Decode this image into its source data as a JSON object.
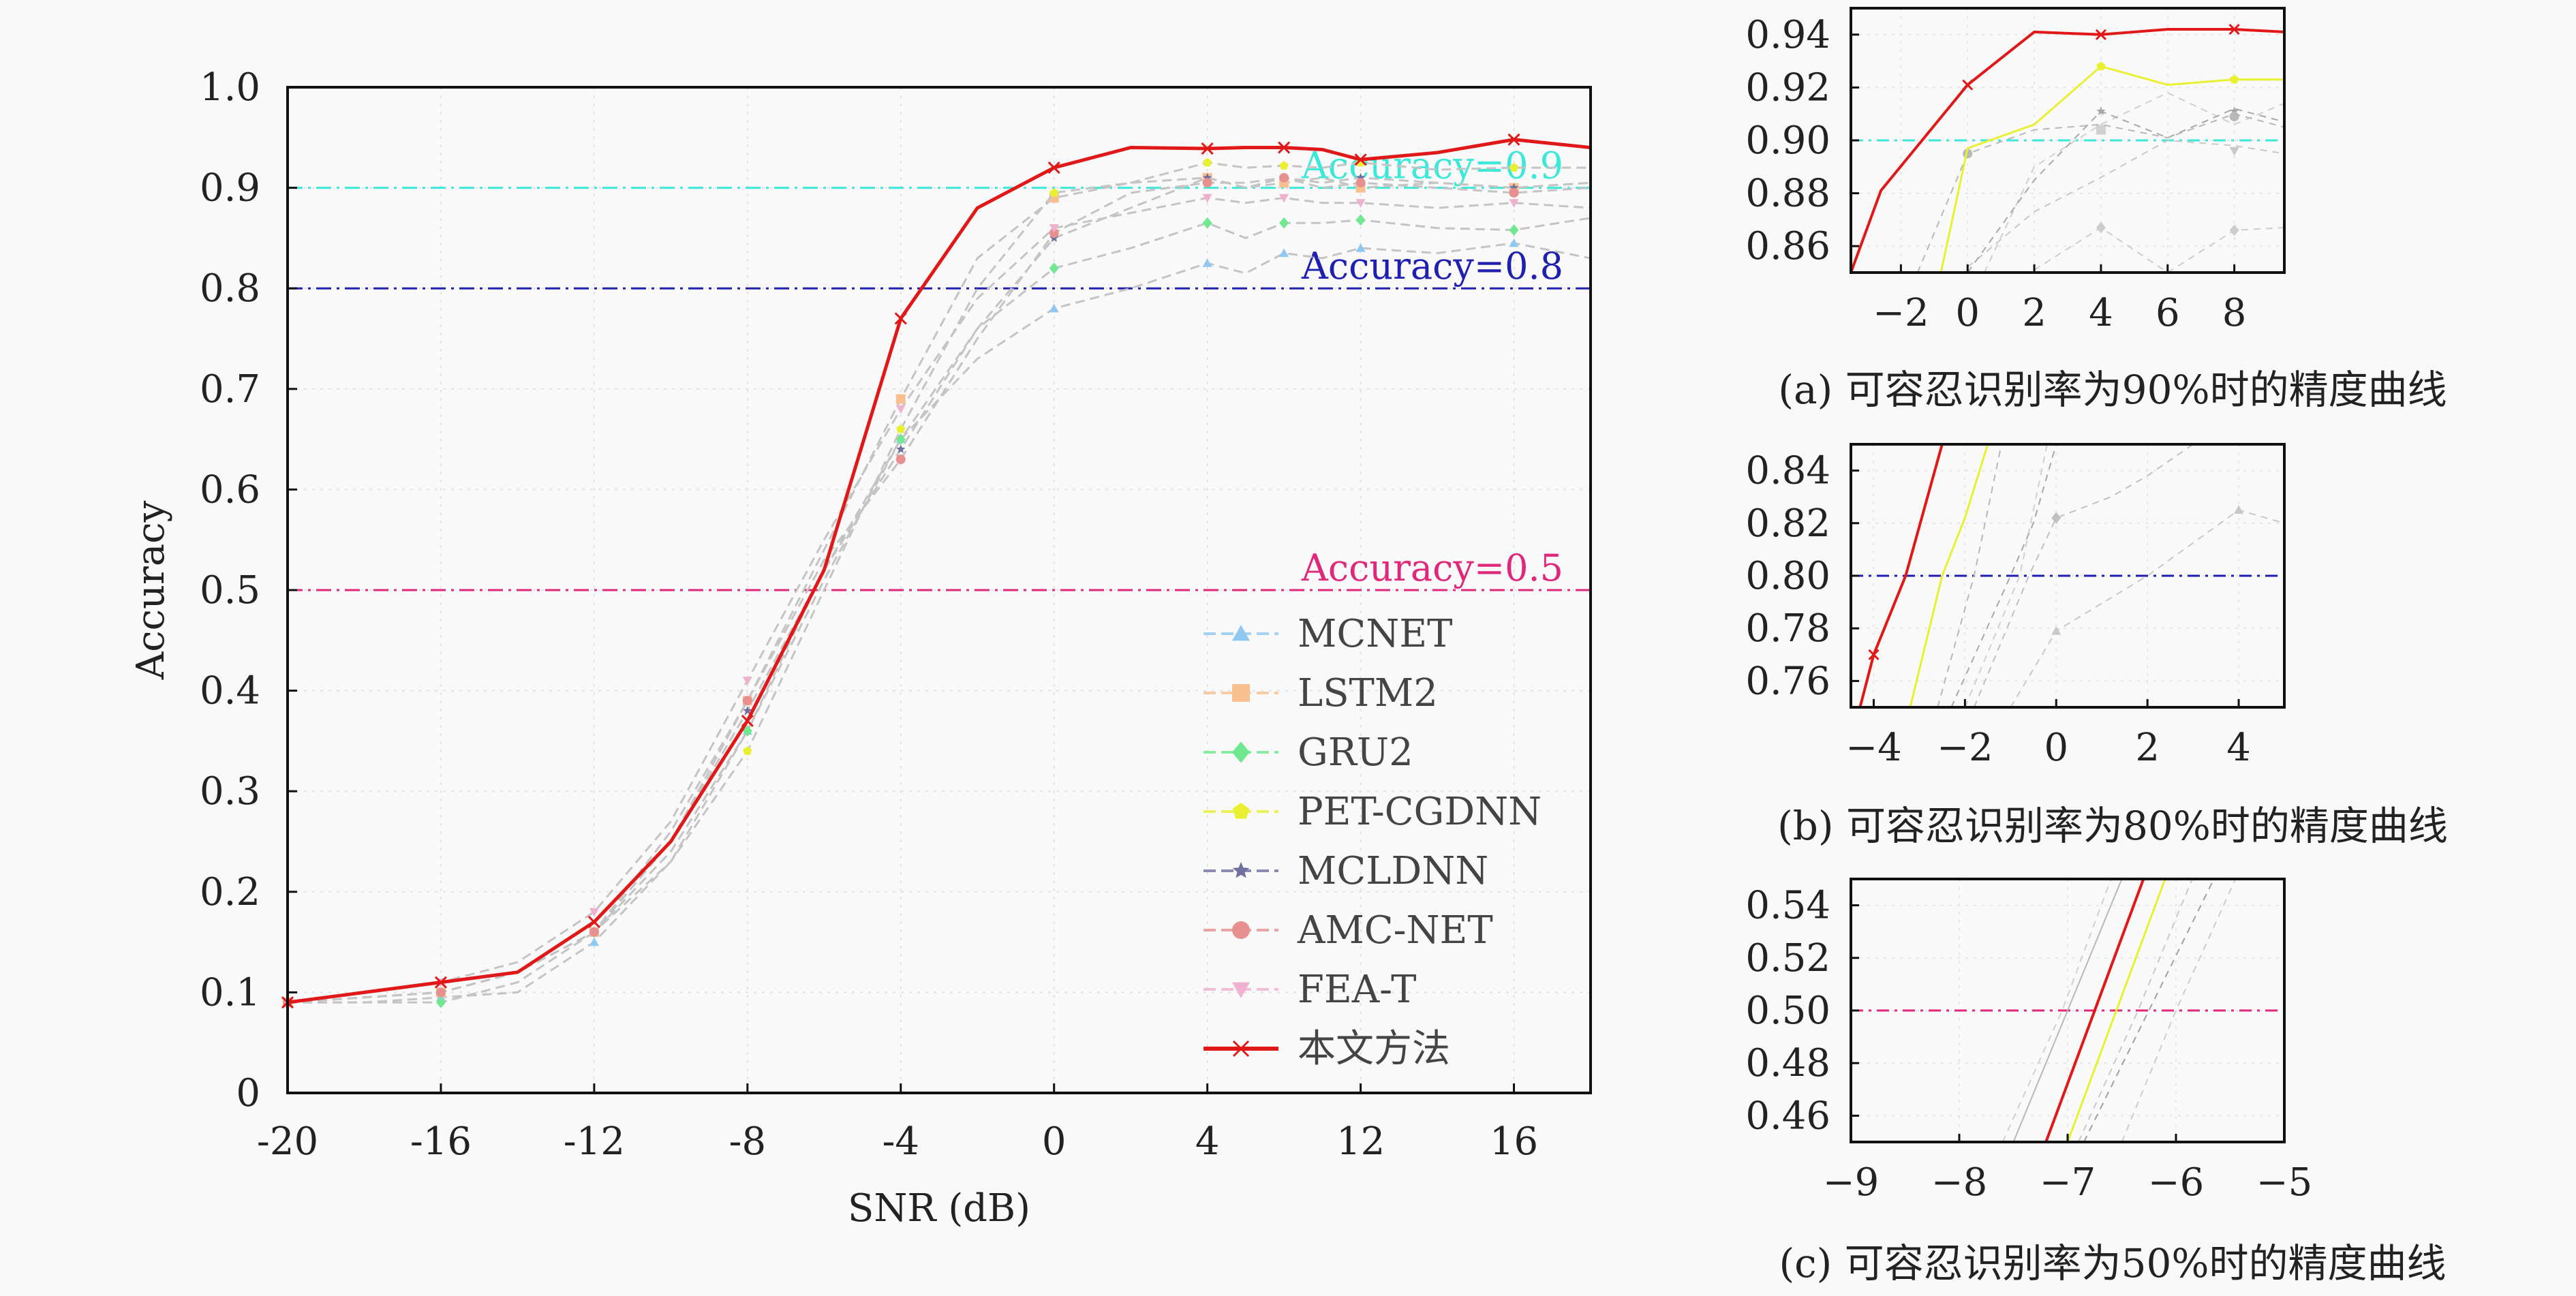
{
  "main_chart": {
    "type": "line",
    "xlabel": "SNR (dB)",
    "ylabel": "Accuracy",
    "xlim": [
      -20,
      18
    ],
    "ylim": [
      0,
      1.0
    ],
    "xticks": [
      -20,
      -16,
      -12,
      -8,
      -4,
      0,
      4,
      12,
      16
    ],
    "yticks": [
      0,
      0.1,
      0.2,
      0.3,
      0.4,
      0.5,
      0.6,
      0.7,
      0.8,
      0.9,
      1.0
    ],
    "ytick_labels": [
      "0",
      "0.1",
      "0.2",
      "0.3",
      "0.4",
      "0.5",
      "0.6",
      "0.7",
      "0.8",
      "0.9",
      "1.0"
    ],
    "grid": true,
    "legend_position": "lower-right",
    "x_label_map": [
      {
        "label": "-20",
        "v": -20
      },
      {
        "label": "-16",
        "v": -16
      },
      {
        "label": "-12",
        "v": -12
      },
      {
        "label": "-8",
        "v": -8
      },
      {
        "label": "-4",
        "v": -4
      },
      {
        "label": "0",
        "v": 0
      },
      {
        "label": "4",
        "v": 4
      },
      {
        "label": "12",
        "v": 12
      },
      {
        "label": "16",
        "v": 16
      }
    ]
  },
  "reference_lines": [
    {
      "y": 0.9,
      "label": "Accuracy=0.9",
      "color": "#3ee8d8"
    },
    {
      "y": 0.8,
      "label": "Accuracy=0.8",
      "color": "#2020b0"
    },
    {
      "y": 0.5,
      "label": "Accuracy=0.5",
      "color": "#e0287a"
    }
  ],
  "chart_data": [
    {
      "type": "line",
      "xlabel": "SNR (dB)",
      "ylabel": "Accuracy",
      "xlim": [
        -20,
        18
      ],
      "ylim": [
        0,
        1.0
      ],
      "series": [
        {
          "name": "MCNET",
          "color": "#8fc8f0",
          "marker": "triangle",
          "dashed": true,
          "x": [
            -20,
            -18,
            -16,
            -14,
            -12,
            -10,
            -8,
            -6,
            -4,
            -2,
            0,
            2,
            4,
            6,
            8,
            10,
            12,
            14,
            16,
            18
          ],
          "y": [
            0.09,
            0.09,
            0.095,
            0.1,
            0.15,
            0.23,
            0.36,
            0.52,
            0.65,
            0.73,
            0.78,
            0.8,
            0.825,
            0.815,
            0.835,
            0.83,
            0.84,
            0.835,
            0.845,
            0.83
          ]
        },
        {
          "name": "LSTM2",
          "color": "#f8c090",
          "marker": "square",
          "dashed": true,
          "x": [
            -20,
            -18,
            -16,
            -14,
            -12,
            -10,
            -8,
            -6,
            -4,
            -2,
            0,
            2,
            4,
            6,
            8,
            10,
            12,
            14,
            16,
            18
          ],
          "y": [
            0.09,
            0.095,
            0.1,
            0.12,
            0.16,
            0.25,
            0.39,
            0.54,
            0.69,
            0.83,
            0.89,
            0.905,
            0.91,
            0.9,
            0.905,
            0.91,
            0.9,
            0.905,
            0.9,
            0.905
          ]
        },
        {
          "name": "GRU2",
          "color": "#70e890",
          "marker": "diamond",
          "dashed": true,
          "x": [
            -20,
            -18,
            -16,
            -14,
            -12,
            -10,
            -8,
            -6,
            -4,
            -2,
            0,
            2,
            4,
            6,
            8,
            10,
            12,
            14,
            16,
            18
          ],
          "y": [
            0.09,
            0.09,
            0.09,
            0.11,
            0.16,
            0.24,
            0.36,
            0.51,
            0.65,
            0.76,
            0.82,
            0.84,
            0.865,
            0.85,
            0.865,
            0.865,
            0.868,
            0.86,
            0.858,
            0.87
          ]
        },
        {
          "name": "PET-CGDNN",
          "color": "#e8f030",
          "marker": "pentagon",
          "dashed": true,
          "x": [
            -20,
            -18,
            -16,
            -14,
            -12,
            -10,
            -8,
            -6,
            -4,
            -2,
            0,
            2,
            4,
            6,
            8,
            10,
            12,
            14,
            16,
            18
          ],
          "y": [
            0.09,
            0.095,
            0.1,
            0.12,
            0.16,
            0.23,
            0.34,
            0.5,
            0.66,
            0.8,
            0.895,
            0.905,
            0.925,
            0.92,
            0.922,
            0.92,
            0.925,
            0.918,
            0.92,
            0.92
          ]
        },
        {
          "name": "MCLDNN",
          "color": "#7070a0",
          "marker": "star",
          "dashed": true,
          "x": [
            -20,
            -18,
            -16,
            -14,
            -12,
            -10,
            -8,
            -6,
            -4,
            -2,
            0,
            2,
            4,
            6,
            8,
            10,
            12,
            14,
            16,
            18
          ],
          "y": [
            0.09,
            0.095,
            0.1,
            0.12,
            0.16,
            0.25,
            0.38,
            0.52,
            0.64,
            0.76,
            0.85,
            0.88,
            0.91,
            0.9,
            0.91,
            0.905,
            0.91,
            0.905,
            0.9,
            0.905
          ]
        },
        {
          "name": "AMC-NET",
          "color": "#e89090",
          "marker": "circle",
          "dashed": true,
          "x": [
            -20,
            -18,
            -16,
            -14,
            -12,
            -10,
            -8,
            -6,
            -4,
            -2,
            0,
            2,
            4,
            6,
            8,
            10,
            12,
            14,
            16,
            18
          ],
          "y": [
            0.09,
            0.095,
            0.1,
            0.12,
            0.16,
            0.26,
            0.39,
            0.53,
            0.63,
            0.75,
            0.855,
            0.895,
            0.905,
            0.905,
            0.91,
            0.9,
            0.905,
            0.9,
            0.895,
            0.9
          ]
        },
        {
          "name": "FEA-T",
          "color": "#f0b0d0",
          "marker": "triangle-down",
          "dashed": true,
          "x": [
            -20,
            -18,
            -16,
            -14,
            -12,
            -10,
            -8,
            -6,
            -4,
            -2,
            0,
            2,
            4,
            6,
            8,
            10,
            12,
            14,
            16,
            18
          ],
          "y": [
            0.09,
            0.1,
            0.11,
            0.13,
            0.18,
            0.27,
            0.41,
            0.55,
            0.68,
            0.79,
            0.86,
            0.875,
            0.89,
            0.885,
            0.89,
            0.885,
            0.885,
            0.88,
            0.885,
            0.88
          ]
        },
        {
          "name": "本文方法",
          "color": "#e01818",
          "marker": "x",
          "dashed": false,
          "x": [
            -20,
            -18,
            -16,
            -14,
            -12,
            -10,
            -8,
            -6,
            -4,
            -2,
            0,
            2,
            4,
            6,
            8,
            10,
            12,
            14,
            16,
            18
          ],
          "y": [
            0.09,
            0.1,
            0.11,
            0.12,
            0.17,
            0.25,
            0.37,
            0.52,
            0.77,
            0.88,
            0.92,
            0.94,
            0.939,
            0.94,
            0.94,
            0.938,
            0.928,
            0.935,
            0.948,
            0.94
          ]
        }
      ]
    },
    {
      "type": "line",
      "caption": "(a) 可容忍识别率为90%时的精度曲线",
      "xlim": [
        -3.5,
        9.5
      ],
      "ylim": [
        0.85,
        0.95
      ],
      "xticks": [
        -2,
        0,
        2,
        4,
        6,
        8
      ],
      "xtick_labels": [
        "−2",
        "0",
        "2",
        "4",
        "6",
        "8"
      ],
      "yticks": [
        0.86,
        0.88,
        0.9,
        0.92,
        0.94
      ],
      "ytick_labels": [
        "0.86",
        "0.88",
        "0.90",
        "0.92",
        "0.94"
      ],
      "ref_line": {
        "y": 0.9,
        "color": "#3ee8d8"
      }
    },
    {
      "type": "line",
      "caption": "(b) 可容忍识别率为80%时的精度曲线",
      "xlim": [
        -4.5,
        5.0
      ],
      "ylim": [
        0.75,
        0.85
      ],
      "xticks": [
        -4,
        -2,
        0,
        2,
        4
      ],
      "xtick_labels": [
        "−4",
        "−2",
        "0",
        "2",
        "4"
      ],
      "yticks": [
        0.76,
        0.78,
        0.8,
        0.82,
        0.84
      ],
      "ytick_labels": [
        "0.76",
        "0.78",
        "0.80",
        "0.82",
        "0.84"
      ],
      "ref_line": {
        "y": 0.8,
        "color": "#2020b0"
      }
    },
    {
      "type": "line",
      "caption": "(c) 可容忍识别率为50%时的精度曲线",
      "xlim": [
        -9.0,
        -5.0
      ],
      "ylim": [
        0.45,
        0.55
      ],
      "xticks": [
        -9,
        -8,
        -7,
        -6,
        -5
      ],
      "xtick_labels": [
        "−9",
        "−8",
        "−7",
        "−6",
        "−5"
      ],
      "yticks": [
        0.46,
        0.48,
        0.5,
        0.52,
        0.54
      ],
      "ytick_labels": [
        "0.46",
        "0.48",
        "0.50",
        "0.52",
        "0.54"
      ],
      "ref_line": {
        "y": 0.5,
        "color": "#e0287a"
      }
    }
  ]
}
